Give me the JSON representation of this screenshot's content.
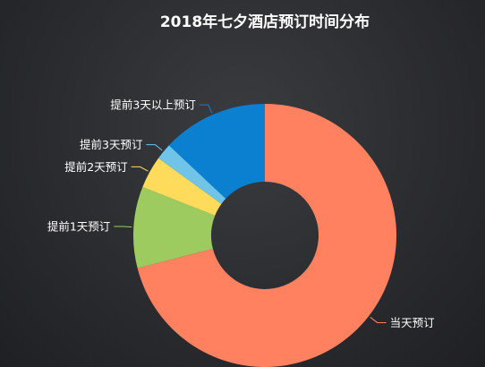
{
  "chart_data": {
    "type": "pie",
    "title": "2018年七夕酒店预订时间分布",
    "slices": [
      {
        "label": "当天预订",
        "value": 71,
        "color": "#ff8160"
      },
      {
        "label": "提前1天预订",
        "value": 10,
        "color": "#9ecb5f"
      },
      {
        "label": "提前2天预订",
        "value": 4,
        "color": "#ffdb5c"
      },
      {
        "label": "提前3天预订",
        "value": 2,
        "color": "#6fc4e8"
      },
      {
        "label": "提前3天以上预订",
        "value": 13,
        "color": "#0c80d0"
      }
    ]
  }
}
